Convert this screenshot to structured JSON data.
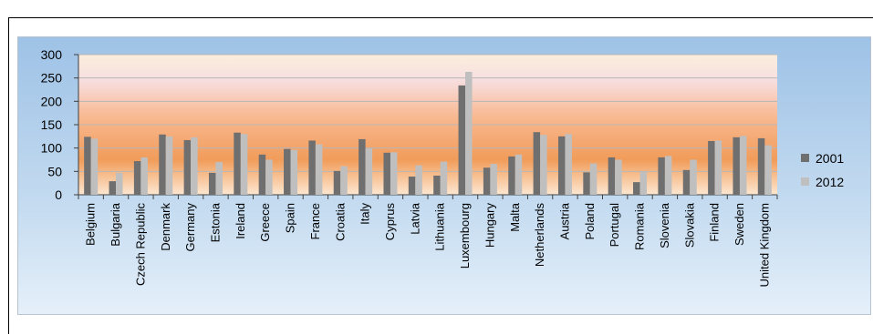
{
  "colors": {
    "series_2001": "#6f6f6f",
    "series_2012": "#bfbfbf"
  },
  "chart_data": {
    "type": "bar",
    "title": "",
    "xlabel": "",
    "ylabel": "",
    "ylim": [
      0,
      300
    ],
    "yticks": [
      0,
      50,
      100,
      150,
      200,
      250,
      300
    ],
    "grid": true,
    "legend_position": "right",
    "categories": [
      "Belgium",
      "Bulgaria",
      "Czech Republic",
      "Denmark",
      "Germany",
      "Estonia",
      "Ireland",
      "Greece",
      "Spain",
      "France",
      "Croatia",
      "Italy",
      "Cyprus",
      "Latvia",
      "Lithuania",
      "Luxembourg",
      "Hungary",
      "Malta",
      "Netherlands",
      "Austria",
      "Poland",
      "Portugal",
      "Romania",
      "Slovenia",
      "Slovakia",
      "Finland",
      "Sweden",
      "United Kingdom"
    ],
    "series": [
      {
        "name": "2001",
        "values": [
          124,
          29,
          72,
          129,
          117,
          47,
          133,
          86,
          98,
          116,
          51,
          119,
          90,
          39,
          41,
          234,
          58,
          82,
          134,
          125,
          48,
          80,
          27,
          80,
          53,
          115,
          123,
          121
        ]
      },
      {
        "name": "2012",
        "values": [
          120,
          47,
          80,
          125,
          123,
          70,
          130,
          75,
          96,
          108,
          61,
          99,
          91,
          63,
          71,
          263,
          66,
          86,
          128,
          130,
          67,
          75,
          49,
          83,
          75,
          116,
          126,
          106
        ]
      }
    ]
  }
}
